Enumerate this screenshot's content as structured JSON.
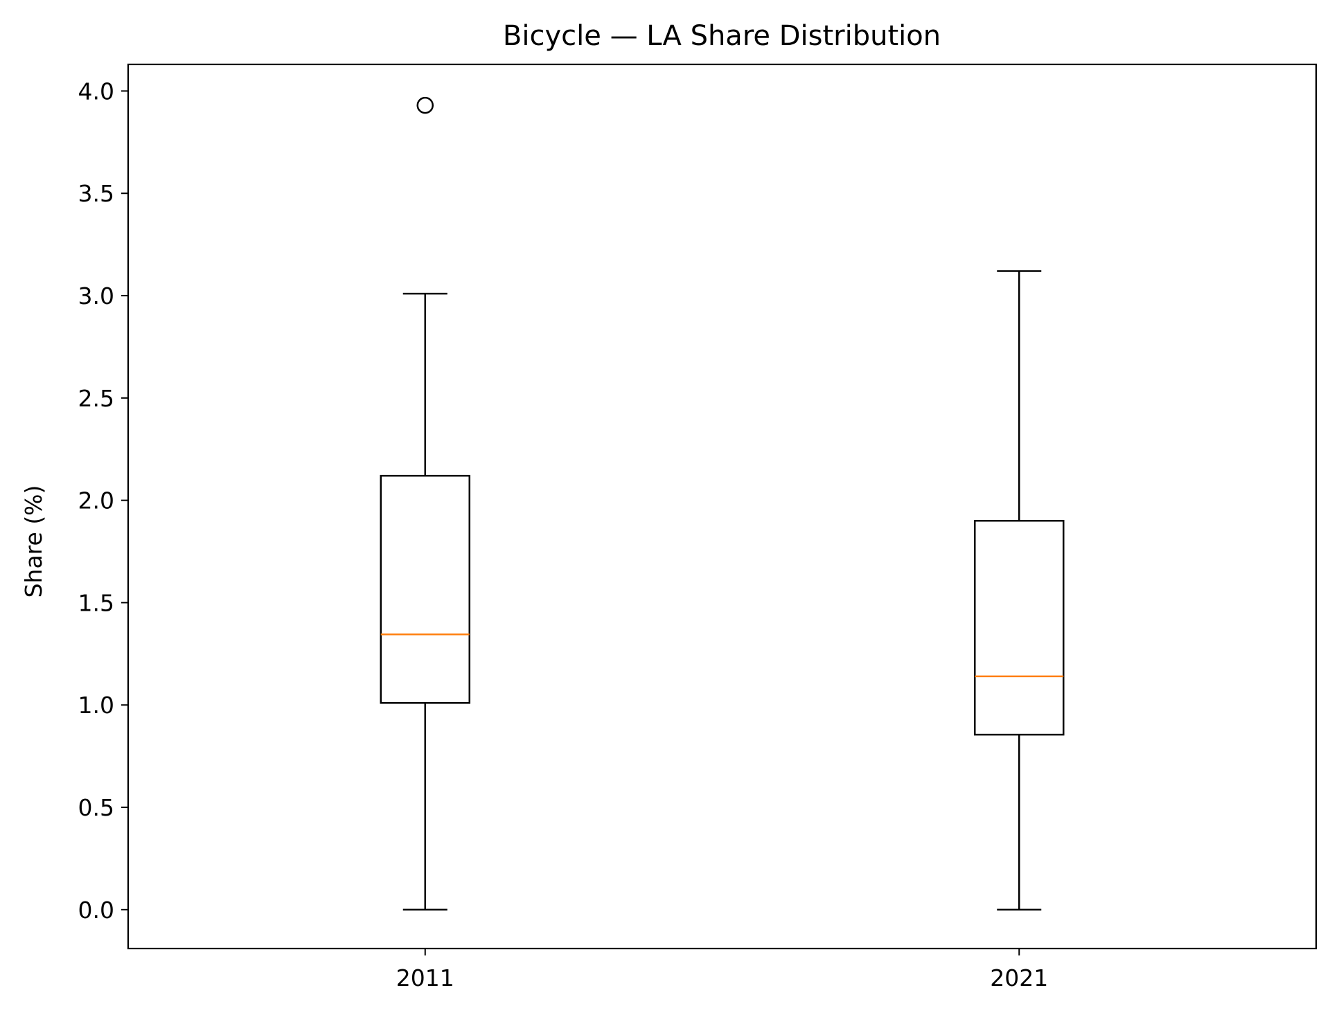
{
  "chart_data": {
    "type": "boxplot",
    "title": "Bicycle — LA Share Distribution",
    "xlabel": "",
    "ylabel": "Share (%)",
    "categories": [
      "2011",
      "2021"
    ],
    "ylim": [
      -0.19,
      4.13
    ],
    "yticks": [
      "0.0",
      "0.5",
      "1.0",
      "1.5",
      "2.0",
      "2.5",
      "3.0",
      "3.5",
      "4.0"
    ],
    "grid": false,
    "boxes": [
      {
        "label": "2011",
        "whisker_low": 0.0,
        "q1": 1.01,
        "median": 1.345,
        "q3": 2.12,
        "whisker_high": 3.01,
        "outliers": [
          3.93
        ]
      },
      {
        "label": "2021",
        "whisker_low": 0.0,
        "q1": 0.855,
        "median": 1.14,
        "q3": 1.9,
        "whisker_high": 3.12,
        "outliers": []
      }
    ],
    "colors": {
      "box": "#000000",
      "median": "#ff7f0e",
      "outlier": "#000000"
    }
  }
}
